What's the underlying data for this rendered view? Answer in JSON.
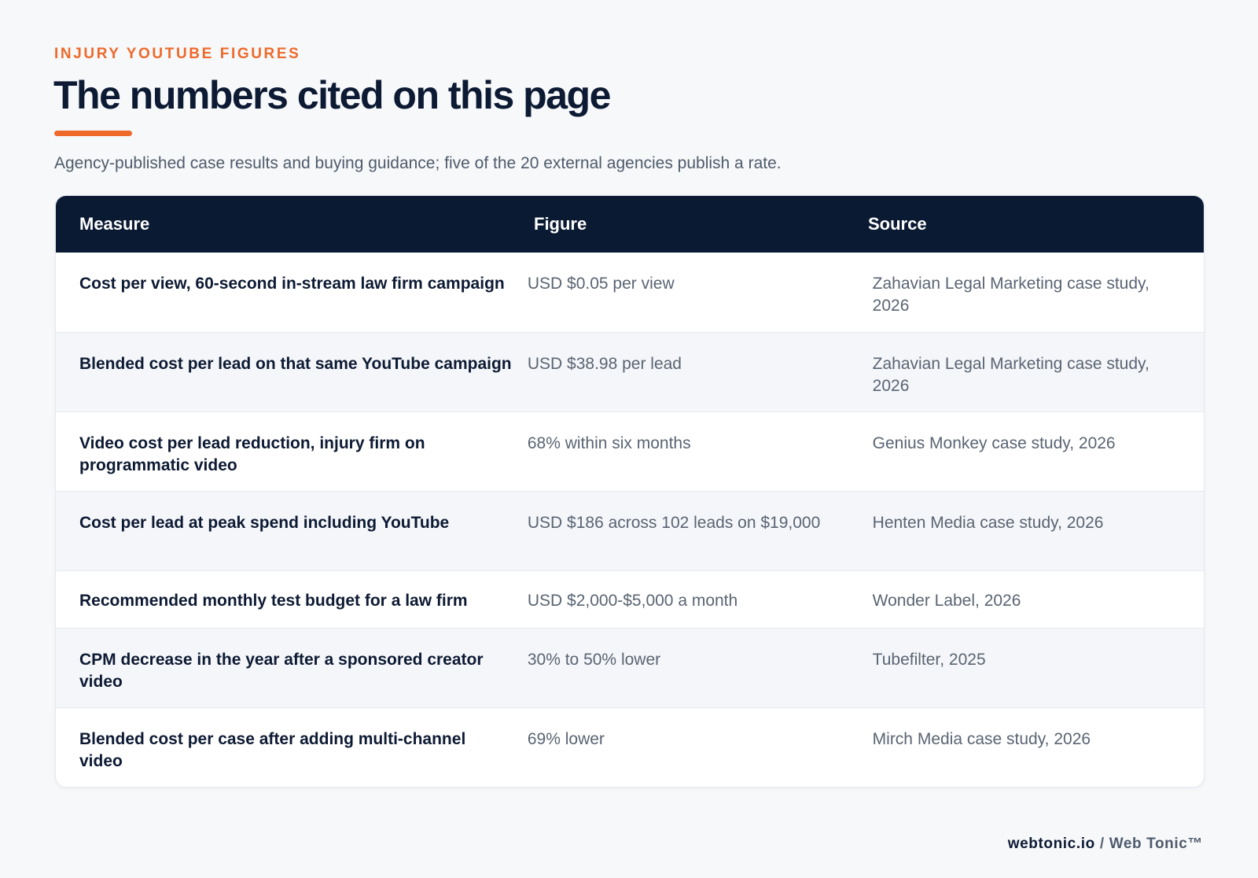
{
  "header": {
    "eyebrow": "INJURY YOUTUBE FIGURES",
    "title": "The numbers cited on this page",
    "subtitle": "Agency-published case results and buying guidance; five of the 20 external agencies publish a rate.",
    "accent_color": "#ee6a2b"
  },
  "table": {
    "columns": [
      "Measure",
      "Figure",
      "Source"
    ],
    "header_color": "#0b1a33",
    "rows": [
      {
        "measure": "Cost per view, 60-second in-stream law firm campaign",
        "figure": "USD $0.05 per view",
        "source": "Zahavian Legal Marketing case study, 2026"
      },
      {
        "measure": "Blended cost per lead on that same YouTube campaign",
        "figure": "USD $38.98 per lead",
        "source": "Zahavian Legal Marketing case study, 2026"
      },
      {
        "measure": "Video cost per lead reduction, injury firm on programmatic video",
        "figure": "68% within six months",
        "source": "Genius Monkey case study, 2026"
      },
      {
        "measure": "Cost per lead at peak spend including YouTube",
        "figure": "USD $186 across 102 leads on $19,000",
        "source": "Henten Media case study, 2026"
      },
      {
        "measure": "Recommended monthly test budget for a law firm",
        "figure": "USD $2,000-$5,000 a month",
        "source": "Wonder Label, 2026"
      },
      {
        "measure": "CPM decrease in the year after a sponsored creator video",
        "figure": "30% to 50% lower",
        "source": "Tubefilter, 2025"
      },
      {
        "measure": "Blended cost per case after adding multi-channel video",
        "figure": "69% lower",
        "source": "Mirch Media case study, 2026"
      }
    ]
  },
  "footer": {
    "site": "webtonic.io",
    "separator": "/",
    "brand": "Web Tonic™"
  }
}
